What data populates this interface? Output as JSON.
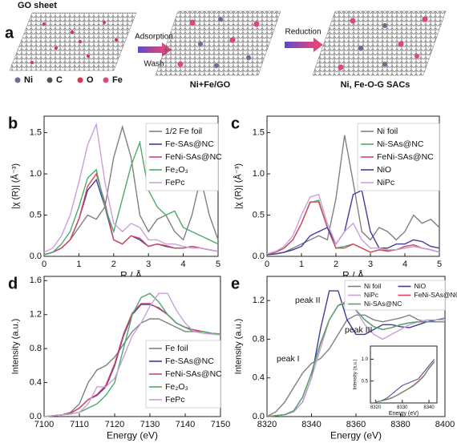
{
  "scheme": {
    "label": "a",
    "go_sheet": "GO sheet",
    "adsorption": "Adsorption",
    "wash": "Wash",
    "reduction": "Reduction",
    "intermediate": "Ni+Fe/GO",
    "product": "Ni, Fe-O-G SACs",
    "legend": [
      "Ni",
      "C",
      "O",
      "Fe"
    ]
  },
  "chart_data": [
    {
      "type": "line",
      "label": "b",
      "x_label": "R / Å",
      "y_label": "|χ (R)| (Å⁻³)",
      "x": [
        0,
        0.25,
        0.5,
        0.75,
        1,
        1.25,
        1.5,
        1.75,
        2,
        2.25,
        2.5,
        2.75,
        3,
        3.25,
        3.5,
        3.75,
        4,
        4.25,
        4.5,
        4.75,
        5
      ],
      "xlim": [
        0,
        5
      ],
      "xticks": [
        0,
        1,
        2,
        3,
        4,
        5
      ],
      "ylim": [
        0,
        1.7
      ],
      "yticks": [
        {
          "value": 0,
          "label": "0.0"
        },
        0.5,
        {
          "value": 1,
          "label": "1.0"
        },
        1.5
      ],
      "legend": "upper right",
      "series": [
        {
          "name": "1/2 Fe foil",
          "color": "#808080",
          "values": [
            0.02,
            0.05,
            0.1,
            0.2,
            0.35,
            0.5,
            0.45,
            0.6,
            1.2,
            1.57,
            1.2,
            0.5,
            0.3,
            0.45,
            0.5,
            0.3,
            0.2,
            0.5,
            0.95,
            0.5,
            0.2
          ]
        },
        {
          "name": "Fe-SAs@NC",
          "color": "#3d3d9e",
          "values": [
            0.02,
            0.05,
            0.1,
            0.2,
            0.45,
            0.8,
            0.93,
            0.6,
            0.2,
            0.15,
            0.25,
            0.2,
            0.12,
            0.15,
            0.12,
            0.1,
            0.1,
            0.12,
            0.1,
            0.08,
            0.06
          ]
        },
        {
          "name": "FeNi-SAs@NC",
          "color": "#d9455f",
          "values": [
            0.02,
            0.05,
            0.1,
            0.2,
            0.45,
            0.85,
            1.0,
            0.65,
            0.2,
            0.15,
            0.25,
            0.22,
            0.12,
            0.15,
            0.13,
            0.1,
            0.1,
            0.12,
            0.1,
            0.08,
            0.06
          ]
        },
        {
          "name": "Fe₂O₃",
          "color": "#4daa6a",
          "values": [
            0.02,
            0.05,
            0.15,
            0.3,
            0.6,
            0.95,
            1.05,
            0.6,
            0.3,
            0.7,
            1.1,
            1.38,
            0.8,
            0.6,
            0.5,
            0.55,
            0.35,
            0.3,
            0.25,
            0.2,
            0.15
          ]
        },
        {
          "name": "FePc",
          "color": "#c9a0dc",
          "values": [
            0.05,
            0.1,
            0.25,
            0.5,
            0.9,
            1.35,
            1.6,
            0.9,
            0.4,
            0.3,
            0.4,
            0.35,
            0.2,
            0.2,
            0.15,
            0.15,
            0.12,
            0.1,
            0.1,
            0.08,
            0.06
          ]
        }
      ]
    },
    {
      "type": "line",
      "label": "c",
      "x_label": "R / Å",
      "y_label": "|χ (R)| (Å⁻³)",
      "x": [
        0,
        0.25,
        0.5,
        0.75,
        1,
        1.25,
        1.5,
        1.75,
        2,
        2.25,
        2.5,
        2.75,
        3,
        3.25,
        3.5,
        3.75,
        4,
        4.25,
        4.5,
        4.75,
        5
      ],
      "xlim": [
        0,
        5
      ],
      "xticks": [
        0,
        1,
        2,
        3,
        4,
        5
      ],
      "ylim": [
        0,
        1.7
      ],
      "yticks": [
        {
          "value": 0,
          "label": "0.0"
        },
        0.5,
        {
          "value": 1,
          "label": "1.0"
        },
        1.5
      ],
      "legend": "upper right",
      "series": [
        {
          "name": "Ni foil",
          "color": "#808080",
          "values": [
            0.02,
            0.03,
            0.05,
            0.1,
            0.15,
            0.2,
            0.25,
            0.2,
            0.7,
            1.47,
            0.9,
            0.3,
            0.2,
            0.35,
            0.3,
            0.2,
            0.3,
            0.5,
            0.4,
            0.45,
            0.35
          ]
        },
        {
          "name": "Ni-SAs@NC",
          "color": "#4daa6a",
          "values": [
            0.02,
            0.05,
            0.1,
            0.2,
            0.4,
            0.65,
            0.68,
            0.35,
            0.1,
            0.12,
            0.15,
            0.1,
            0.05,
            0.08,
            0.06,
            0.08,
            0.1,
            0.12,
            0.1,
            0.08,
            0.05
          ]
        },
        {
          "name": "FeNi-SAs@NC",
          "color": "#d9455f",
          "values": [
            0.02,
            0.05,
            0.1,
            0.2,
            0.4,
            0.66,
            0.66,
            0.35,
            0.1,
            0.1,
            0.15,
            0.1,
            0.05,
            0.08,
            0.07,
            0.08,
            0.12,
            0.14,
            0.1,
            0.08,
            0.05
          ]
        },
        {
          "name": "NiO",
          "color": "#3d3d9e",
          "values": [
            0.02,
            0.03,
            0.05,
            0.08,
            0.12,
            0.25,
            0.3,
            0.35,
            0.15,
            0.3,
            0.75,
            0.8,
            0.3,
            0.1,
            0.1,
            0.15,
            0.15,
            0.2,
            0.18,
            0.12,
            0.1
          ]
        },
        {
          "name": "NiPc",
          "color": "#c9a0dc",
          "values": [
            0.03,
            0.06,
            0.12,
            0.25,
            0.5,
            0.72,
            0.75,
            0.4,
            0.15,
            0.3,
            0.4,
            0.2,
            0.1,
            0.1,
            0.08,
            0.08,
            0.1,
            0.12,
            0.1,
            0.08,
            0.05
          ]
        }
      ]
    },
    {
      "type": "line",
      "label": "d",
      "x_label": "Energy (eV)",
      "y_label": "Intensity (a.u.)",
      "x": [
        7100,
        7102.5,
        7105,
        7107.5,
        7110,
        7112.5,
        7115,
        7117.5,
        7120,
        7122.5,
        7125,
        7127.5,
        7130,
        7132.5,
        7135,
        7137.5,
        7140,
        7142.5,
        7145,
        7147.5,
        7150
      ],
      "xlim": [
        7100,
        7150
      ],
      "xticks": [
        7100,
        7110,
        7120,
        7130,
        7140,
        7150
      ],
      "ylim": [
        0,
        1.65
      ],
      "yticks": [
        {
          "value": 0,
          "label": "0.0"
        },
        0.4,
        0.8,
        1.2,
        1.6
      ],
      "legend": "lower right",
      "series": [
        {
          "name": "Fe foil",
          "color": "#808080",
          "values": [
            0,
            0.01,
            0.02,
            0.05,
            0.15,
            0.4,
            0.55,
            0.6,
            0.7,
            0.85,
            1.0,
            1.1,
            1.15,
            1.15,
            1.1,
            1.05,
            1.0,
            1.0,
            1.0,
            0.98,
            0.97
          ]
        },
        {
          "name": "Fe-SAs@NC",
          "color": "#3d3d9e",
          "values": [
            0,
            0.01,
            0.02,
            0.04,
            0.1,
            0.2,
            0.25,
            0.35,
            0.6,
            0.95,
            1.2,
            1.32,
            1.32,
            1.28,
            1.2,
            1.1,
            1.05,
            1.02,
            1.0,
            0.98,
            0.97
          ]
        },
        {
          "name": "FeNi-SAs@NC",
          "color": "#d9455f",
          "values": [
            0,
            0.01,
            0.02,
            0.04,
            0.1,
            0.2,
            0.26,
            0.37,
            0.62,
            0.97,
            1.22,
            1.33,
            1.33,
            1.27,
            1.2,
            1.1,
            1.05,
            1.02,
            1.0,
            0.98,
            0.97
          ]
        },
        {
          "name": "Fe₂O₃",
          "color": "#4daa6a",
          "values": [
            0,
            0.01,
            0.02,
            0.03,
            0.05,
            0.1,
            0.15,
            0.25,
            0.4,
            0.8,
            1.2,
            1.4,
            1.45,
            1.35,
            1.2,
            1.1,
            1.05,
            1.0,
            1.0,
            0.98,
            0.97
          ]
        },
        {
          "name": "FePc",
          "color": "#c9a0dc",
          "values": [
            0,
            0.01,
            0.02,
            0.03,
            0.05,
            0.15,
            0.35,
            0.35,
            0.45,
            0.7,
            0.95,
            1.1,
            1.3,
            1.45,
            1.45,
            1.25,
            1.1,
            1.0,
            0.98,
            0.97,
            0.96
          ]
        }
      ]
    },
    {
      "type": "line",
      "label": "e",
      "x_label": "Energy (eV)",
      "y_label": "Intensity (a.u.)",
      "x": [
        8320,
        8324,
        8328,
        8332,
        8336,
        8340,
        8344,
        8348,
        8352,
        8356,
        8360,
        8364,
        8368,
        8372,
        8376,
        8380,
        8384,
        8388,
        8392,
        8396,
        8400
      ],
      "xlim": [
        8320,
        8400
      ],
      "xticks": [
        8320,
        8340,
        8360,
        8380,
        8400
      ],
      "ylim": [
        0,
        1.45
      ],
      "yticks": [
        {
          "value": 0,
          "label": "0.0"
        },
        0.4,
        0.8,
        1.2
      ],
      "legend": "upper right",
      "annotations": [
        "peak I",
        "peak II",
        "peak III"
      ],
      "series": [
        {
          "name": "Ni foil",
          "color": "#808080",
          "values": [
            0,
            0.05,
            0.15,
            0.3,
            0.45,
            0.55,
            0.6,
            0.7,
            0.85,
            1.0,
            1.05,
            1.05,
            1.0,
            0.98,
            1.0,
            1.02,
            1.05,
            1.0,
            0.98,
            1.0,
            1.02
          ]
        },
        {
          "name": "NiO",
          "color": "#3d3d9e",
          "values": [
            0,
            0.01,
            0.02,
            0.05,
            0.15,
            0.4,
            0.9,
            1.3,
            1.3,
            1.0,
            0.85,
            0.85,
            0.9,
            0.95,
            0.95,
            0.93,
            0.92,
            0.95,
            0.98,
            1.0,
            1.0
          ]
        },
        {
          "name": "NiPc",
          "color": "#c9a0dc",
          "values": [
            0,
            0.01,
            0.02,
            0.05,
            0.15,
            0.4,
            0.7,
            1.0,
            1.15,
            1.2,
            1.1,
            0.95,
            0.85,
            0.8,
            0.85,
            0.9,
            0.95,
            0.98,
            1.0,
            1.0,
            1.0
          ]
        },
        {
          "name": "FeNi-SAs@NC",
          "color": "#d9455f",
          "values": [
            0,
            0.01,
            0.02,
            0.06,
            0.2,
            0.45,
            0.75,
            1.0,
            1.15,
            1.18,
            1.1,
            1.0,
            0.93,
            0.9,
            0.92,
            0.95,
            0.97,
            0.98,
            0.98,
            0.98,
            0.98
          ]
        },
        {
          "name": "Ni-SAs@NC",
          "color": "#4daa6a",
          "values": [
            0,
            0.01,
            0.02,
            0.06,
            0.2,
            0.45,
            0.76,
            1.0,
            1.15,
            1.17,
            1.1,
            1.0,
            0.93,
            0.9,
            0.92,
            0.95,
            0.97,
            0.98,
            0.98,
            0.98,
            0.98
          ]
        }
      ]
    },
    {
      "type": "line",
      "x_label": "Energy (eV)",
      "y_label": "Intensity (a.u.)",
      "x": [
        8320,
        8322,
        8324,
        8326,
        8328,
        8330,
        8332,
        8334,
        8336,
        8338,
        8340,
        8342
      ],
      "xlim": [
        8318,
        8343
      ],
      "xticks": [
        8320,
        8330,
        8340
      ],
      "ylim": [
        0,
        1.3
      ],
      "yticks": [
        0.5,
        {
          "value": 1,
          "label": "1.0"
        }
      ],
      "series": [
        {
          "color": "#3d3d9e",
          "values": [
            0.02,
            0.05,
            0.1,
            0.2,
            0.3,
            0.4,
            0.45,
            0.5,
            0.55,
            0.7,
            0.85,
            1.0
          ]
        },
        {
          "color": "#d9455f",
          "values": [
            0.02,
            0.04,
            0.08,
            0.12,
            0.18,
            0.25,
            0.32,
            0.4,
            0.5,
            0.62,
            0.8,
            0.95
          ]
        },
        {
          "color": "#4daa6a",
          "values": [
            0.02,
            0.04,
            0.07,
            0.11,
            0.17,
            0.24,
            0.31,
            0.38,
            0.48,
            0.6,
            0.78,
            0.93
          ]
        }
      ]
    }
  ]
}
